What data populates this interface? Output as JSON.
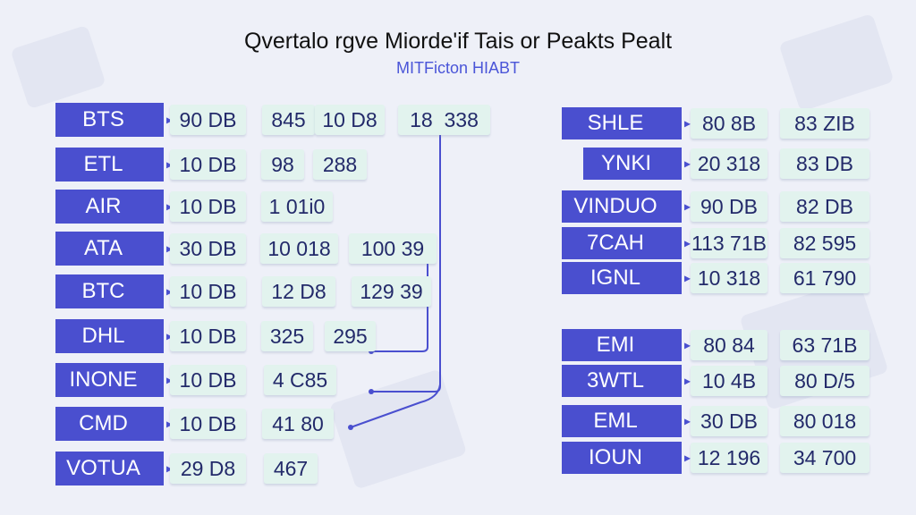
{
  "title": "Qvertalo rgve Miorde'if Tais or Peakts Pealt",
  "subtitle": "MITFicton HIABT",
  "colors": {
    "label_bg": "#4a4fcf",
    "cell_bg": "#e2f3ee",
    "connector": "#4a4fcf",
    "subtitle": "#4a55d8"
  },
  "left_rows": [
    {
      "label": "BTS",
      "cells": [
        "90 DB",
        "845",
        "10 D8",
        "18  338"
      ]
    },
    {
      "label": "ETL",
      "cells": [
        "10 DB",
        "98",
        "288"
      ]
    },
    {
      "label": "AIR",
      "cells": [
        "10 DB",
        "1 01i0"
      ]
    },
    {
      "label": "ATA",
      "cells": [
        "30 DB",
        "10 018",
        "100 39"
      ]
    },
    {
      "label": "BTC",
      "cells": [
        "10 DB",
        "12 D8",
        "129 39"
      ]
    },
    {
      "label": "DHL",
      "cells": [
        "10 DB",
        "325",
        "295"
      ]
    },
    {
      "label": "INONE",
      "cells": [
        "10 DB",
        "4 C85"
      ]
    },
    {
      "label": "CMD",
      "cells": [
        "10 DB",
        "41 80"
      ]
    },
    {
      "label": "VOTUA",
      "cells": [
        "29 D8",
        "467"
      ]
    }
  ],
  "right_rows": [
    {
      "label": "SHLE",
      "cells": [
        "80 8B",
        "83 ZIB"
      ]
    },
    {
      "label": "YNKI",
      "cells": [
        "20 318",
        "83 DB"
      ]
    },
    {
      "label": "VINDUO",
      "cells": [
        "90 DB",
        "82 DB"
      ]
    },
    {
      "label": "7CAH",
      "cells": [
        "113 71B",
        "82 595"
      ]
    },
    {
      "label": "IGNL",
      "cells": [
        "10 318",
        "61 790"
      ]
    },
    {
      "label": "EMI",
      "cells": [
        "80 84",
        "63 71B"
      ]
    },
    {
      "label": "3WTL",
      "cells": [
        "10 4B",
        "80 D/5"
      ]
    },
    {
      "label": "EML",
      "cells": [
        "30 DB",
        "80 018"
      ]
    },
    {
      "label": "IOUN",
      "cells": [
        "12 196",
        "34 700"
      ]
    }
  ]
}
